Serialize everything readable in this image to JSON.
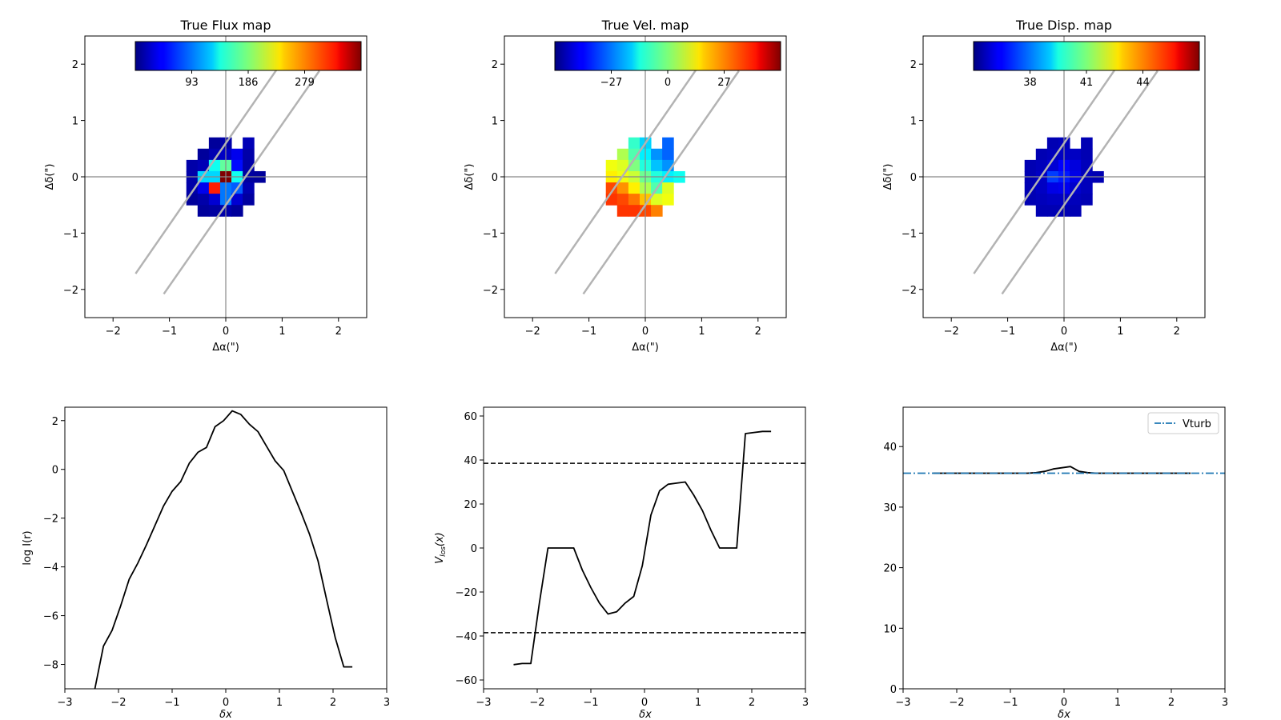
{
  "chart_data": [
    {
      "type": "heatmap",
      "title": "True Flux map",
      "xlabel": "Δα(\")",
      "ylabel": "Δδ(\")",
      "xlim": [
        -2.5,
        2.5
      ],
      "ylim": [
        -2.5,
        2.5
      ],
      "xticks": [
        -2,
        -1,
        0,
        1,
        2
      ],
      "yticks": [
        -2,
        -1,
        0,
        1,
        2
      ],
      "colorbar": {
        "ticks": [
          93,
          186,
          279
        ],
        "range": [
          0,
          372
        ],
        "orientation": "horizontal",
        "placement": "top-inside"
      },
      "slit_lines": [
        [
          [
            -1.6,
            -1.72
          ],
          [
            0.97,
            2.0
          ]
        ],
        [
          [
            -1.1,
            -2.08
          ],
          [
            1.66,
            1.88
          ]
        ]
      ],
      "cell_size": 0.2,
      "cells": [
        [
          -0.2,
          0.6,
          10
        ],
        [
          0.0,
          0.6,
          15
        ],
        [
          0.4,
          0.6,
          20
        ],
        [
          -0.4,
          0.4,
          10
        ],
        [
          -0.2,
          0.4,
          18
        ],
        [
          0.0,
          0.4,
          25
        ],
        [
          0.2,
          0.4,
          40
        ],
        [
          0.4,
          0.4,
          15
        ],
        [
          -0.6,
          0.2,
          15
        ],
        [
          -0.4,
          0.2,
          20
        ],
        [
          -0.2,
          0.2,
          145
        ],
        [
          0.0,
          0.2,
          175
        ],
        [
          0.2,
          0.2,
          50
        ],
        [
          0.4,
          0.2,
          15
        ],
        [
          -0.6,
          0.0,
          15
        ],
        [
          -0.4,
          0.0,
          125
        ],
        [
          -0.2,
          0.0,
          125
        ],
        [
          0.0,
          0.0,
          372
        ],
        [
          0.2,
          0.0,
          145
        ],
        [
          0.4,
          0.0,
          12
        ],
        [
          0.6,
          0.0,
          10
        ],
        [
          -0.6,
          -0.2,
          15
        ],
        [
          -0.4,
          -0.2,
          40
        ],
        [
          -0.2,
          -0.2,
          315
        ],
        [
          0.0,
          -0.2,
          90
        ],
        [
          0.2,
          -0.2,
          80
        ],
        [
          0.4,
          -0.2,
          18
        ],
        [
          -0.6,
          -0.4,
          10
        ],
        [
          -0.4,
          -0.4,
          15
        ],
        [
          -0.2,
          -0.4,
          30
        ],
        [
          0.0,
          -0.4,
          90
        ],
        [
          0.2,
          -0.4,
          30
        ],
        [
          0.4,
          -0.4,
          12
        ],
        [
          -0.4,
          -0.6,
          10
        ],
        [
          -0.2,
          -0.6,
          12
        ],
        [
          0.0,
          -0.6,
          15
        ],
        [
          0.2,
          -0.6,
          10
        ]
      ]
    },
    {
      "type": "heatmap",
      "title": "True Vel. map",
      "xlabel": "Δα(\")",
      "ylabel": "Δδ(\")",
      "xlim": [
        -2.5,
        2.5
      ],
      "ylim": [
        -2.5,
        2.5
      ],
      "xticks": [
        -2,
        -1,
        0,
        1,
        2
      ],
      "yticks": [
        -2,
        -1,
        0,
        1,
        2
      ],
      "colorbar": {
        "ticks": [
          -27,
          0,
          27
        ],
        "range": [
          -54,
          54
        ],
        "orientation": "horizontal",
        "placement": "top-inside"
      },
      "slit_lines": [
        [
          [
            -1.6,
            -1.72
          ],
          [
            0.97,
            2.0
          ]
        ],
        [
          [
            -1.1,
            -2.08
          ],
          [
            1.66,
            1.88
          ]
        ]
      ],
      "cell_size": 0.2,
      "cells": [
        [
          -0.2,
          0.6,
          -8
        ],
        [
          0.0,
          0.6,
          -18
        ],
        [
          0.4,
          0.6,
          -30
        ],
        [
          -0.4,
          0.4,
          5
        ],
        [
          -0.2,
          0.4,
          -5
        ],
        [
          0.0,
          0.4,
          -15
        ],
        [
          0.2,
          0.4,
          -25
        ],
        [
          0.4,
          0.4,
          -30
        ],
        [
          -0.6,
          0.2,
          12
        ],
        [
          -0.4,
          0.2,
          10
        ],
        [
          -0.2,
          0.2,
          0
        ],
        [
          0.0,
          0.2,
          -10
        ],
        [
          0.2,
          0.2,
          -20
        ],
        [
          0.4,
          0.2,
          -25
        ],
        [
          -0.6,
          0.0,
          15
        ],
        [
          -0.4,
          0.0,
          12
        ],
        [
          -0.2,
          0.0,
          8
        ],
        [
          0.0,
          0.0,
          -2
        ],
        [
          0.2,
          0.0,
          -10
        ],
        [
          0.4,
          0.0,
          -15
        ],
        [
          0.6,
          0.0,
          -12
        ],
        [
          -0.6,
          -0.2,
          33
        ],
        [
          -0.4,
          -0.2,
          25
        ],
        [
          -0.2,
          -0.2,
          15
        ],
        [
          0.0,
          -0.2,
          5
        ],
        [
          0.2,
          -0.2,
          -5
        ],
        [
          0.4,
          -0.2,
          10
        ],
        [
          -0.6,
          -0.4,
          35
        ],
        [
          -0.4,
          -0.4,
          33
        ],
        [
          -0.2,
          -0.4,
          28
        ],
        [
          0.0,
          -0.4,
          20
        ],
        [
          0.2,
          -0.4,
          10
        ],
        [
          0.4,
          -0.4,
          12
        ],
        [
          -0.4,
          -0.6,
          35
        ],
        [
          -0.2,
          -0.6,
          35
        ],
        [
          0.0,
          -0.6,
          33
        ],
        [
          0.2,
          -0.6,
          27
        ]
      ]
    },
    {
      "type": "heatmap",
      "title": "True Disp. map",
      "xlabel": "Δα(\")",
      "ylabel": "Δδ(\")",
      "xlim": [
        -2.5,
        2.5
      ],
      "ylim": [
        -2.5,
        2.5
      ],
      "xticks": [
        -2,
        -1,
        0,
        1,
        2
      ],
      "yticks": [
        -2,
        -1,
        0,
        1,
        2
      ],
      "colorbar": {
        "ticks": [
          38,
          41,
          44
        ],
        "range": [
          35,
          47
        ],
        "orientation": "horizontal",
        "placement": "top-inside"
      },
      "slit_lines": [
        [
          [
            -1.6,
            -1.72
          ],
          [
            0.97,
            2.0
          ]
        ],
        [
          [
            -1.1,
            -2.08
          ],
          [
            1.66,
            1.88
          ]
        ]
      ],
      "cell_size": 0.2,
      "cells": [
        [
          -0.2,
          0.6,
          35.6
        ],
        [
          0.0,
          0.6,
          35.7
        ],
        [
          0.4,
          0.6,
          35.6
        ],
        [
          -0.4,
          0.4,
          35.6
        ],
        [
          -0.2,
          0.4,
          35.7
        ],
        [
          0.0,
          0.4,
          35.8
        ],
        [
          0.2,
          0.4,
          35.8
        ],
        [
          0.4,
          0.4,
          35.6
        ],
        [
          -0.6,
          0.2,
          35.6
        ],
        [
          -0.4,
          0.2,
          35.7
        ],
        [
          -0.2,
          0.2,
          36.0
        ],
        [
          0.0,
          0.2,
          36.5
        ],
        [
          0.2,
          0.2,
          36.1
        ],
        [
          0.4,
          0.2,
          35.7
        ],
        [
          -0.6,
          0.0,
          35.6
        ],
        [
          -0.4,
          0.0,
          35.8
        ],
        [
          -0.2,
          0.0,
          37.2
        ],
        [
          0.0,
          0.0,
          36.8
        ],
        [
          0.2,
          0.0,
          36.2
        ],
        [
          0.4,
          0.0,
          35.7
        ],
        [
          0.6,
          0.0,
          35.6
        ],
        [
          -0.6,
          -0.2,
          35.6
        ],
        [
          -0.4,
          -0.2,
          35.8
        ],
        [
          -0.2,
          -0.2,
          36.2
        ],
        [
          0.0,
          -0.2,
          36.3
        ],
        [
          0.2,
          -0.2,
          35.9
        ],
        [
          0.4,
          -0.2,
          35.7
        ],
        [
          -0.6,
          -0.4,
          35.6
        ],
        [
          -0.4,
          -0.4,
          35.7
        ],
        [
          -0.2,
          -0.4,
          35.8
        ],
        [
          0.0,
          -0.4,
          35.8
        ],
        [
          0.2,
          -0.4,
          35.7
        ],
        [
          0.4,
          -0.4,
          35.6
        ],
        [
          -0.4,
          -0.6,
          35.6
        ],
        [
          -0.2,
          -0.6,
          35.6
        ],
        [
          0.0,
          -0.6,
          35.6
        ],
        [
          0.2,
          -0.6,
          35.6
        ]
      ]
    },
    {
      "type": "line",
      "xlabel": "δx",
      "ylabel": "log I(r)",
      "xlim": [
        -3,
        3
      ],
      "ylim": [
        -9,
        2.55
      ],
      "xticks": [
        -3,
        -2,
        -1,
        0,
        1,
        2,
        3
      ],
      "yticks": [
        -8,
        -6,
        -4,
        -2,
        0,
        2
      ],
      "series": [
        {
          "x": [
            -2.44,
            -2.28,
            -2.12,
            -1.96,
            -1.8,
            -1.64,
            -1.48,
            -1.32,
            -1.16,
            -1.0,
            -0.84,
            -0.68,
            -0.52,
            -0.36,
            -0.2,
            -0.04,
            0.12,
            0.28,
            0.44,
            0.6,
            0.76,
            0.92,
            1.08,
            1.24,
            1.4,
            1.56,
            1.72,
            1.88,
            2.04,
            2.2,
            2.36
          ],
          "y": [
            -9.0,
            -7.25,
            -6.6,
            -5.6,
            -4.5,
            -3.85,
            -3.1,
            -2.3,
            -1.5,
            -0.9,
            -0.5,
            0.25,
            0.7,
            0.9,
            1.75,
            2.0,
            2.4,
            2.25,
            1.85,
            1.55,
            0.95,
            0.35,
            -0.05,
            -0.9,
            -1.75,
            -2.65,
            -3.75,
            -5.35,
            -6.9,
            -8.1,
            -8.1
          ],
          "style": "solid",
          "color": "#000000"
        }
      ]
    },
    {
      "type": "line",
      "xlabel": "δx",
      "ylabel": "V_los(x)",
      "xlim": [
        -3,
        3
      ],
      "ylim": [
        -64,
        64
      ],
      "xticks": [
        -3,
        -2,
        -1,
        0,
        1,
        2,
        3
      ],
      "yticks": [
        -60,
        -40,
        -20,
        0,
        20,
        40,
        60
      ],
      "hlines": [
        38.5,
        -38.5
      ],
      "series": [
        {
          "x": [
            -2.44,
            -2.28,
            -2.12,
            -1.96,
            -1.8,
            -1.64,
            -1.48,
            -1.32,
            -1.16,
            -1.0,
            -0.84,
            -0.68,
            -0.52,
            -0.36,
            -0.2,
            -0.04,
            0.12,
            0.28,
            0.44,
            0.6,
            0.76,
            0.92,
            1.08,
            1.24,
            1.4,
            1.56,
            1.72,
            1.88,
            2.04,
            2.2,
            2.36
          ],
          "y": [
            -53,
            -52.5,
            -52.5,
            -25,
            0,
            0,
            0,
            0,
            -10,
            -18,
            -25,
            -30,
            -29,
            -25,
            -22,
            -8,
            15,
            26,
            29,
            29.5,
            30,
            24,
            17,
            8,
            0,
            0,
            0,
            52,
            52.5,
            53,
            53
          ],
          "style": "solid",
          "color": "#000000"
        }
      ]
    },
    {
      "type": "line",
      "xlabel": "δx",
      "ylabel": "",
      "xlim": [
        -3,
        3
      ],
      "ylim": [
        0,
        46.5
      ],
      "xticks": [
        -3,
        -2,
        -1,
        0,
        1,
        2,
        3
      ],
      "yticks": [
        0,
        10,
        20,
        30,
        40
      ],
      "legend": {
        "placement": "top-right",
        "entries": [
          "Vturb"
        ]
      },
      "series": [
        {
          "x": [
            -2.44,
            -2.28,
            -2.12,
            -1.96,
            -1.8,
            -1.64,
            -1.48,
            -1.32,
            -1.16,
            -1.0,
            -0.84,
            -0.68,
            -0.52,
            -0.36,
            -0.2,
            -0.04,
            0.12,
            0.28,
            0.44,
            0.6,
            0.76,
            0.92,
            1.08,
            1.24,
            1.4,
            1.56,
            1.72,
            1.88,
            2.04,
            2.2,
            2.36
          ],
          "y": [
            35.6,
            35.6,
            35.6,
            35.6,
            35.6,
            35.6,
            35.6,
            35.6,
            35.6,
            35.6,
            35.6,
            35.6,
            35.7,
            35.9,
            36.3,
            36.5,
            36.7,
            35.9,
            35.7,
            35.6,
            35.6,
            35.6,
            35.6,
            35.6,
            35.6,
            35.6,
            35.6,
            35.6,
            35.6,
            35.6,
            35.6
          ],
          "style": "solid",
          "color": "#000000"
        },
        {
          "name": "Vturb",
          "x": [
            -3,
            3
          ],
          "y": [
            35.6,
            35.6
          ],
          "style": "dashdot",
          "color": "#1f77b4"
        }
      ]
    }
  ]
}
